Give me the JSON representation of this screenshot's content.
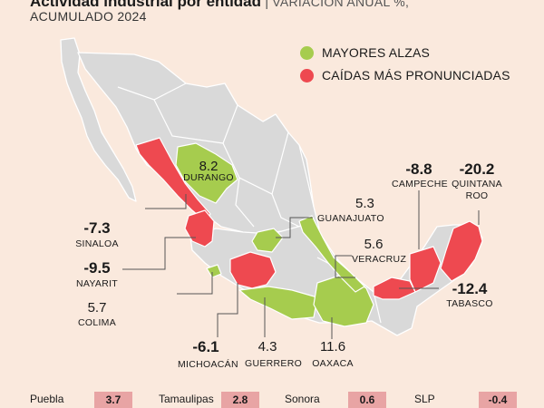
{
  "title": {
    "bold": "Actividad industrial por entidad",
    "separator": "|",
    "subtitle": "VARIACIÓN ANUAL %,",
    "line2": "ACUMULADO 2024"
  },
  "legend": {
    "up": "MAYORES ALZAS",
    "down": "CAÍDAS MÁS PRONUNCIADAS"
  },
  "colors": {
    "background": "#fae9dd",
    "land": "#d9d9d9",
    "border": "#ffffff",
    "rise": "#a6cc4e",
    "fall": "#ee4950",
    "leader": "#555555",
    "bottom_value_bg": "#e8a4a4"
  },
  "states": {
    "durango": {
      "name": "DURANGO",
      "value": "8.2",
      "trend": "rise"
    },
    "sinaloa": {
      "name": "SINALOA",
      "value": "-7.3",
      "trend": "fall"
    },
    "nayarit": {
      "name": "NAYARIT",
      "value": "-9.5",
      "trend": "fall"
    },
    "colima": {
      "name": "COLIMA",
      "value": "5.7",
      "trend": "rise"
    },
    "michoacan": {
      "name": "MICHOACÁN",
      "value": "-6.1",
      "trend": "fall"
    },
    "guerrero": {
      "name": "GUERRERO",
      "value": "4.3",
      "trend": "rise"
    },
    "oaxaca": {
      "name": "OAXACA",
      "value": "11.6",
      "trend": "rise"
    },
    "guanajuato": {
      "name": "GUANAJUATO",
      "value": "5.3",
      "trend": "rise"
    },
    "veracruz": {
      "name": "VERACRUZ",
      "value": "5.6",
      "trend": "rise"
    },
    "campeche": {
      "name": "CAMPECHE",
      "value": "-8.8",
      "trend": "fall"
    },
    "quintana_roo": {
      "name1": "QUINTANA",
      "name2": "ROO",
      "value": "-20.2",
      "trend": "fall"
    },
    "tabasco": {
      "name": "TABASCO",
      "value": "-12.4",
      "trend": "fall"
    }
  },
  "bottom_list": [
    {
      "name": "Puebla",
      "value": "3.7"
    },
    {
      "name": "Tamaulipas",
      "value": "2.8"
    },
    {
      "name": "Sonora",
      "value": "0.6"
    },
    {
      "name": "SLP",
      "value": "-0.4"
    }
  ]
}
